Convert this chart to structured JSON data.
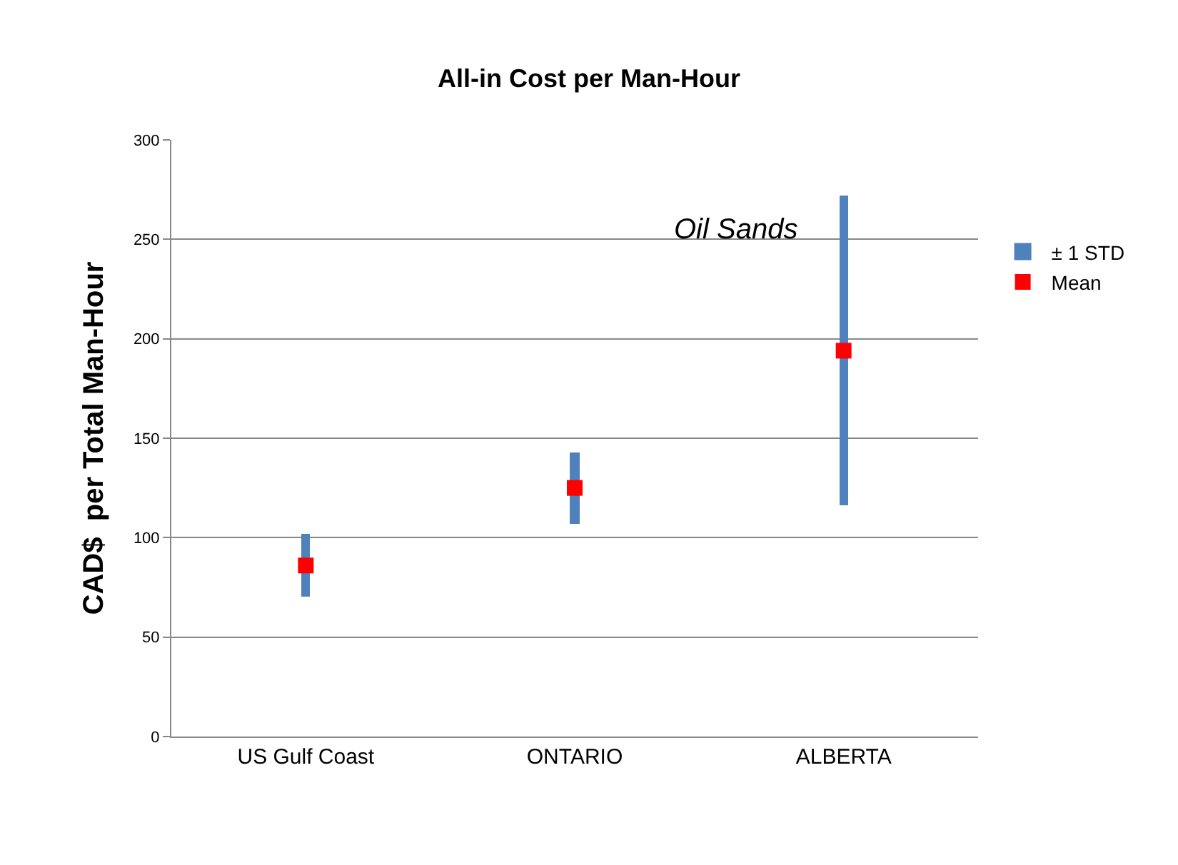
{
  "chart_data": {
    "type": "scatter",
    "title": "All-in Cost per Man-Hour",
    "ylabel": "CAD$  per Total Man-Hour",
    "categories": [
      "US Gulf Coast",
      "ONTARIO",
      "ALBERTA"
    ],
    "series": [
      {
        "name": "± 1 STD",
        "type": "bar",
        "color": "#4f81bd",
        "base": [
          70,
          107,
          116
        ],
        "values": [
          32,
          36,
          156
        ]
      },
      {
        "name": "Mean",
        "color": "#ff0000",
        "values": [
          86,
          125,
          194
        ]
      }
    ],
    "annotations": [
      "Oil Sands"
    ],
    "ylim": [
      0,
      300
    ],
    "yticks": [
      0,
      50,
      100,
      150,
      200,
      250,
      300
    ],
    "grid": "y",
    "legend": "right",
    "marker": "square"
  }
}
